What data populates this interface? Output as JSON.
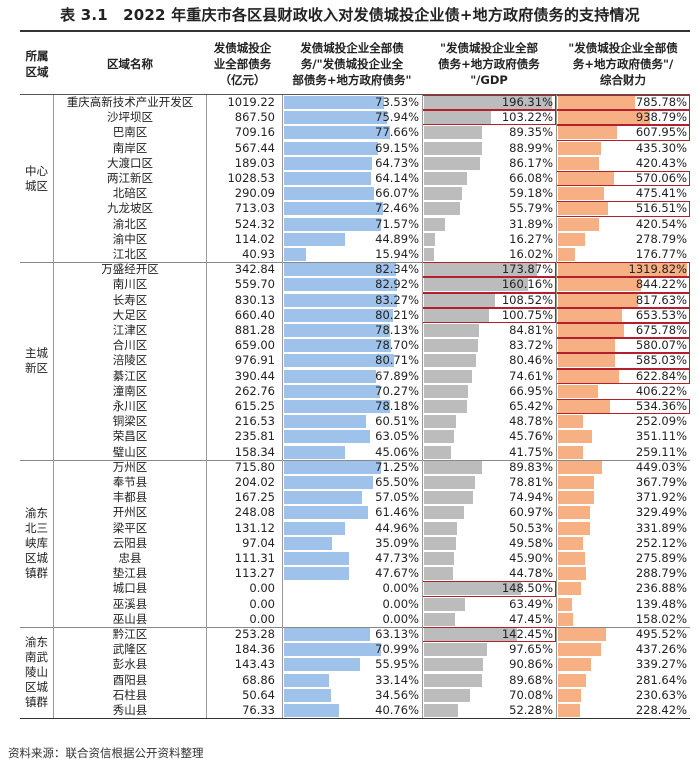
{
  "title": "表 3.1　2022 年重庆市各区县财政收入对发债城投企业债+地方政府债务的支持情况",
  "headers": {
    "region": "所属\n区域",
    "name": "区域名称",
    "debt": "发债城投企\n业全部债务\n（亿元）",
    "c1": "发债城投企业全部债\n务/\"发债城投企业全\n部债务+地方政府债务\"",
    "c2": "\"发债城投企业全部\n债务+地方政府债务\n\"/GDP",
    "c3": "\"发债城投企业全部债\n务+地方政府债务\"/\n综合财力"
  },
  "colors": {
    "bar1": "#9ec2ea",
    "bar2": "#bcbcbc",
    "bar3": "#f6b083",
    "highlight": "#b21f2d"
  },
  "groups": [
    {
      "label": "中心\n城区",
      "rows": [
        {
          "name": "重庆高新技术产业开发区",
          "debt": "1019.22",
          "c1": "73.53%",
          "c2": "196.31%",
          "c3": "785.78%"
        },
        {
          "name": "沙坪坝区",
          "debt": "867.50",
          "c1": "75.94%",
          "c2": "103.22%",
          "c3": "938.79%"
        },
        {
          "name": "巴南区",
          "debt": "709.16",
          "c1": "77.66%",
          "c2": "89.35%",
          "c3": "607.95%"
        },
        {
          "name": "南岸区",
          "debt": "567.44",
          "c1": "69.15%",
          "c2": "88.99%",
          "c3": "435.30%"
        },
        {
          "name": "大渡口区",
          "debt": "189.03",
          "c1": "64.73%",
          "c2": "86.17%",
          "c3": "420.43%"
        },
        {
          "name": "两江新区",
          "debt": "1028.53",
          "c1": "64.14%",
          "c2": "66.08%",
          "c3": "570.06%"
        },
        {
          "name": "北碚区",
          "debt": "290.09",
          "c1": "66.07%",
          "c2": "59.18%",
          "c3": "475.41%"
        },
        {
          "name": "九龙坡区",
          "debt": "713.03",
          "c1": "72.46%",
          "c2": "55.79%",
          "c3": "516.51%"
        },
        {
          "name": "渝北区",
          "debt": "524.32",
          "c1": "71.57%",
          "c2": "31.89%",
          "c3": "420.54%"
        },
        {
          "name": "渝中区",
          "debt": "114.02",
          "c1": "44.89%",
          "c2": "16.27%",
          "c3": "278.79%"
        },
        {
          "name": "江北区",
          "debt": "40.93",
          "c1": "15.94%",
          "c2": "16.02%",
          "c3": "176.77%"
        }
      ]
    },
    {
      "label": "主城\n新区",
      "rows": [
        {
          "name": "万盛经开区",
          "debt": "342.84",
          "c1": "82.34%",
          "c2": "173.87%",
          "c3": "1319.82%"
        },
        {
          "name": "南川区",
          "debt": "559.70",
          "c1": "82.92%",
          "c2": "160.16%",
          "c3": "844.22%"
        },
        {
          "name": "长寿区",
          "debt": "830.13",
          "c1": "83.27%",
          "c2": "108.52%",
          "c3": "817.63%"
        },
        {
          "name": "大足区",
          "debt": "660.40",
          "c1": "80.21%",
          "c2": "100.75%",
          "c3": "653.53%"
        },
        {
          "name": "江津区",
          "debt": "881.28",
          "c1": "78.13%",
          "c2": "84.81%",
          "c3": "675.78%"
        },
        {
          "name": "合川区",
          "debt": "659.00",
          "c1": "78.70%",
          "c2": "83.72%",
          "c3": "580.07%"
        },
        {
          "name": "涪陵区",
          "debt": "976.91",
          "c1": "80.71%",
          "c2": "80.46%",
          "c3": "585.03%"
        },
        {
          "name": "綦江区",
          "debt": "390.44",
          "c1": "67.89%",
          "c2": "74.61%",
          "c3": "622.84%"
        },
        {
          "name": "潼南区",
          "debt": "262.76",
          "c1": "70.27%",
          "c2": "66.95%",
          "c3": "406.22%"
        },
        {
          "name": "永川区",
          "debt": "615.25",
          "c1": "78.18%",
          "c2": "65.42%",
          "c3": "534.36%"
        },
        {
          "name": "铜梁区",
          "debt": "216.53",
          "c1": "60.51%",
          "c2": "48.78%",
          "c3": "252.09%"
        },
        {
          "name": "荣昌区",
          "debt": "235.81",
          "c1": "63.05%",
          "c2": "45.76%",
          "c3": "351.11%"
        },
        {
          "name": "璧山区",
          "debt": "158.34",
          "c1": "45.06%",
          "c2": "41.75%",
          "c3": "259.11%"
        }
      ]
    },
    {
      "label": "渝东\n北三\n峡库\n区城\n镇群",
      "rows": [
        {
          "name": "万州区",
          "debt": "715.80",
          "c1": "71.25%",
          "c2": "89.83%",
          "c3": "449.03%"
        },
        {
          "name": "奉节县",
          "debt": "204.02",
          "c1": "65.50%",
          "c2": "78.81%",
          "c3": "367.79%"
        },
        {
          "name": "丰都县",
          "debt": "167.25",
          "c1": "57.05%",
          "c2": "74.94%",
          "c3": "371.92%"
        },
        {
          "name": "开州区",
          "debt": "248.08",
          "c1": "61.46%",
          "c2": "60.97%",
          "c3": "329.49%"
        },
        {
          "name": "梁平区",
          "debt": "131.12",
          "c1": "44.96%",
          "c2": "50.53%",
          "c3": "331.89%"
        },
        {
          "name": "云阳县",
          "debt": "97.04",
          "c1": "35.09%",
          "c2": "49.58%",
          "c3": "252.12%"
        },
        {
          "name": "忠县",
          "debt": "111.31",
          "c1": "47.73%",
          "c2": "45.90%",
          "c3": "275.89%"
        },
        {
          "name": "垫江县",
          "debt": "113.27",
          "c1": "47.67%",
          "c2": "44.78%",
          "c3": "288.79%"
        },
        {
          "name": "城口县",
          "debt": "0.00",
          "c1": "0.00%",
          "c2": "148.50%",
          "c3": "236.88%"
        },
        {
          "name": "巫溪县",
          "debt": "0.00",
          "c1": "0.00%",
          "c2": "63.49%",
          "c3": "139.48%"
        },
        {
          "name": "巫山县",
          "debt": "0.00",
          "c1": "0.00%",
          "c2": "47.45%",
          "c3": "158.02%"
        }
      ]
    },
    {
      "label": "渝东\n南武\n陵山\n区城\n镇群",
      "rows": [
        {
          "name": "黔江区",
          "debt": "253.28",
          "c1": "63.13%",
          "c2": "142.45%",
          "c3": "495.52%"
        },
        {
          "name": "武隆区",
          "debt": "184.36",
          "c1": "70.99%",
          "c2": "97.65%",
          "c3": "437.26%"
        },
        {
          "name": "彭水县",
          "debt": "143.43",
          "c1": "55.95%",
          "c2": "90.86%",
          "c3": "339.27%"
        },
        {
          "name": "酉阳县",
          "debt": "68.86",
          "c1": "33.14%",
          "c2": "89.68%",
          "c3": "281.64%"
        },
        {
          "name": "石柱县",
          "debt": "50.64",
          "c1": "34.56%",
          "c2": "70.08%",
          "c3": "230.63%"
        },
        {
          "name": "秀山县",
          "debt": "76.33",
          "c1": "40.76%",
          "c2": "52.28%",
          "c3": "228.42%"
        }
      ]
    }
  ],
  "source": "资料来源：联合资信根据公开资料整理"
}
